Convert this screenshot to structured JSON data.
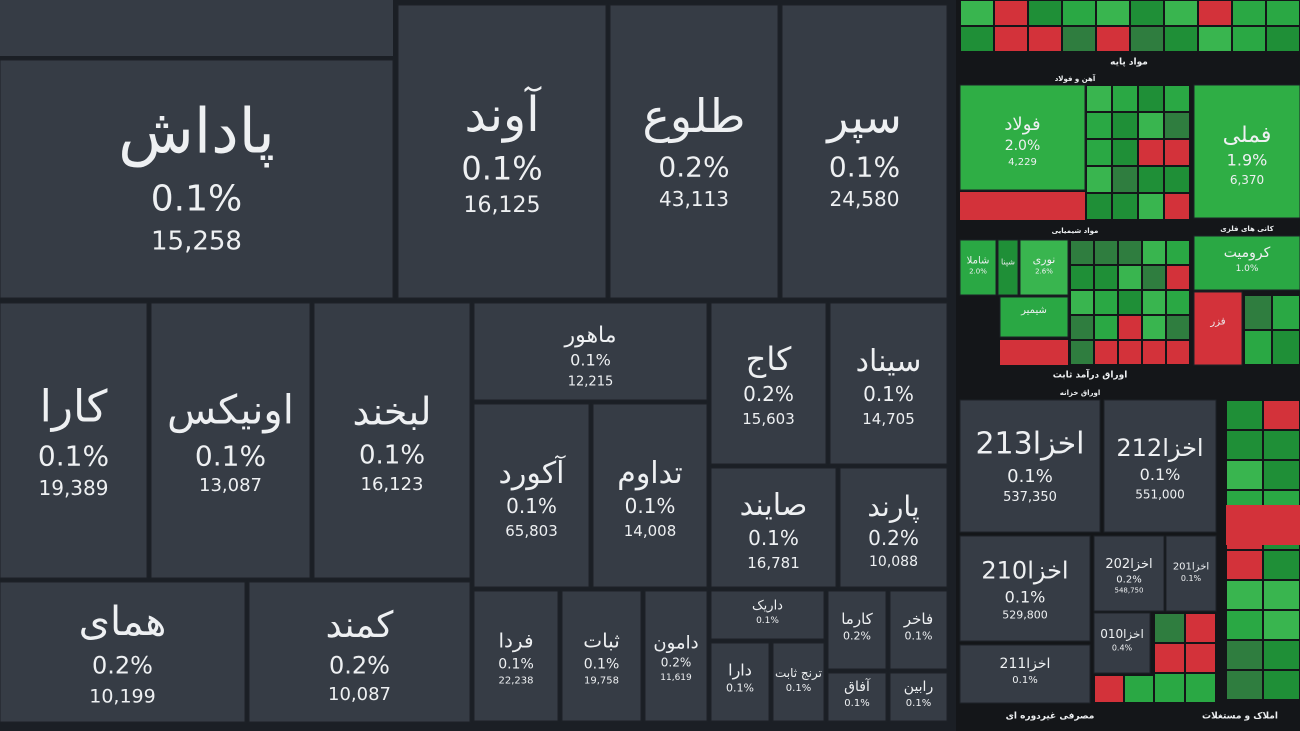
{
  "market_map": {
    "tiles": [
      {
        "name": "پاداش",
        "change": "0.1%",
        "volume": "15,258"
      },
      {
        "name": "آوند",
        "change": "0.1%",
        "volume": "16,125"
      },
      {
        "name": "طلوع",
        "change": "0.2%",
        "volume": "43,113"
      },
      {
        "name": "سپر",
        "change": "0.1%",
        "volume": "24,580"
      },
      {
        "name": "کارا",
        "change": "0.1%",
        "volume": "19,389"
      },
      {
        "name": "اونیکس",
        "change": "0.1%",
        "volume": "13,087"
      },
      {
        "name": "لبخند",
        "change": "0.1%",
        "volume": "16,123"
      },
      {
        "name": "ماهور",
        "change": "0.1%",
        "volume": "12,215"
      },
      {
        "name": "کاج",
        "change": "0.2%",
        "volume": "15,603"
      },
      {
        "name": "سیناد",
        "change": "0.1%",
        "volume": "14,705"
      },
      {
        "name": "آکورد",
        "change": "0.1%",
        "volume": "65,803"
      },
      {
        "name": "تداوم",
        "change": "0.1%",
        "volume": "14,008"
      },
      {
        "name": "صایند",
        "change": "0.1%",
        "volume": "16,781"
      },
      {
        "name": "پارند",
        "change": "0.2%",
        "volume": "10,088"
      },
      {
        "name": "همای",
        "change": "0.2%",
        "volume": "10,199"
      },
      {
        "name": "کمند",
        "change": "0.2%",
        "volume": "10,087"
      },
      {
        "name": "فردا",
        "change": "0.1%",
        "volume": "22,238"
      },
      {
        "name": "ثبات",
        "change": "0.1%",
        "volume": "19,758"
      },
      {
        "name": "دامون",
        "change": "0.2%",
        "volume": "11,619"
      },
      {
        "name": "داریک",
        "change": "0.1%"
      },
      {
        "name": "کارما",
        "change": "0.2%"
      },
      {
        "name": "فاخر",
        "change": "0.1%"
      },
      {
        "name": "دارا",
        "change": "0.1%"
      },
      {
        "name": "ترنج ثابت",
        "change": "0.1%"
      },
      {
        "name": "آفاق",
        "change": "0.1%"
      },
      {
        "name": "رابین",
        "change": "0.1%"
      }
    ],
    "sector_panel": {
      "headers": [
        "مواد پایه",
        "آهن و فولاد",
        "مواد شیمیایی",
        "کانی های فلزی",
        "اوراق درآمد ثابت",
        "اوراق خزانه",
        "مصرفی غیردوره ای",
        "املاک و مستغلات"
      ],
      "tiles": [
        {
          "name": "فولاد",
          "change": "2.0%",
          "volume": "4,229"
        },
        {
          "name": "فملی",
          "change": "1.9%",
          "volume": "6,370"
        },
        {
          "name": "کرومیت",
          "change": "1.0%"
        },
        {
          "name": "شاملا",
          "change": "2.0%"
        },
        {
          "name": "نوری",
          "change": "2.6%"
        },
        {
          "name": "شپنا"
        },
        {
          "name": "شیمیر"
        },
        {
          "name": "فزر"
        },
        {
          "name": "اخزا213",
          "change": "0.1%",
          "volume": "537,350"
        },
        {
          "name": "اخزا212",
          "change": "0.1%",
          "volume": "551,000"
        },
        {
          "name": "اخزا210",
          "change": "0.1%",
          "volume": "529,800"
        },
        {
          "name": "اخزا202",
          "change": "0.2%",
          "volume": "548,750"
        },
        {
          "name": "اخزا201",
          "change": "0.1%"
        },
        {
          "name": "اخزا010",
          "change": "0.4%"
        },
        {
          "name": "اخزا211",
          "change": "0.1%"
        }
      ]
    }
  }
}
